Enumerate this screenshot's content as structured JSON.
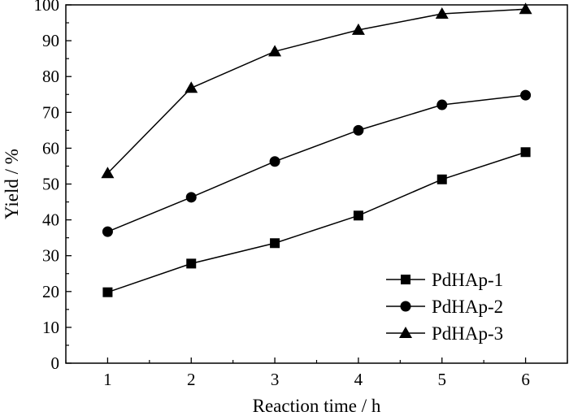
{
  "chart_data": {
    "type": "line",
    "title": "",
    "xlabel": "Reaction time / h",
    "ylabel": "Yield / %",
    "x": [
      1,
      2,
      3,
      4,
      5,
      6
    ],
    "xlim": [
      0.5,
      6.5
    ],
    "ylim": [
      0,
      100
    ],
    "xticks": [
      "1",
      "2",
      "3",
      "4",
      "5",
      "6"
    ],
    "yticks": [
      "0",
      "10",
      "20",
      "30",
      "40",
      "50",
      "60",
      "70",
      "80",
      "90",
      "100"
    ],
    "grid": false,
    "legend_position": "bottom-right",
    "series": [
      {
        "name": "PdHAp-1",
        "marker": "square",
        "values": [
          19.8,
          27.8,
          33.5,
          41.2,
          51.3,
          58.9
        ]
      },
      {
        "name": "PdHAp-2",
        "marker": "circle",
        "values": [
          36.7,
          46.3,
          56.3,
          65.0,
          72.1,
          74.8
        ]
      },
      {
        "name": "PdHAp-3",
        "marker": "triangle",
        "values": [
          53.0,
          76.8,
          87.0,
          93.0,
          97.5,
          98.8
        ]
      }
    ],
    "colors": {
      "line": "#000000",
      "marker": "#000000"
    }
  }
}
